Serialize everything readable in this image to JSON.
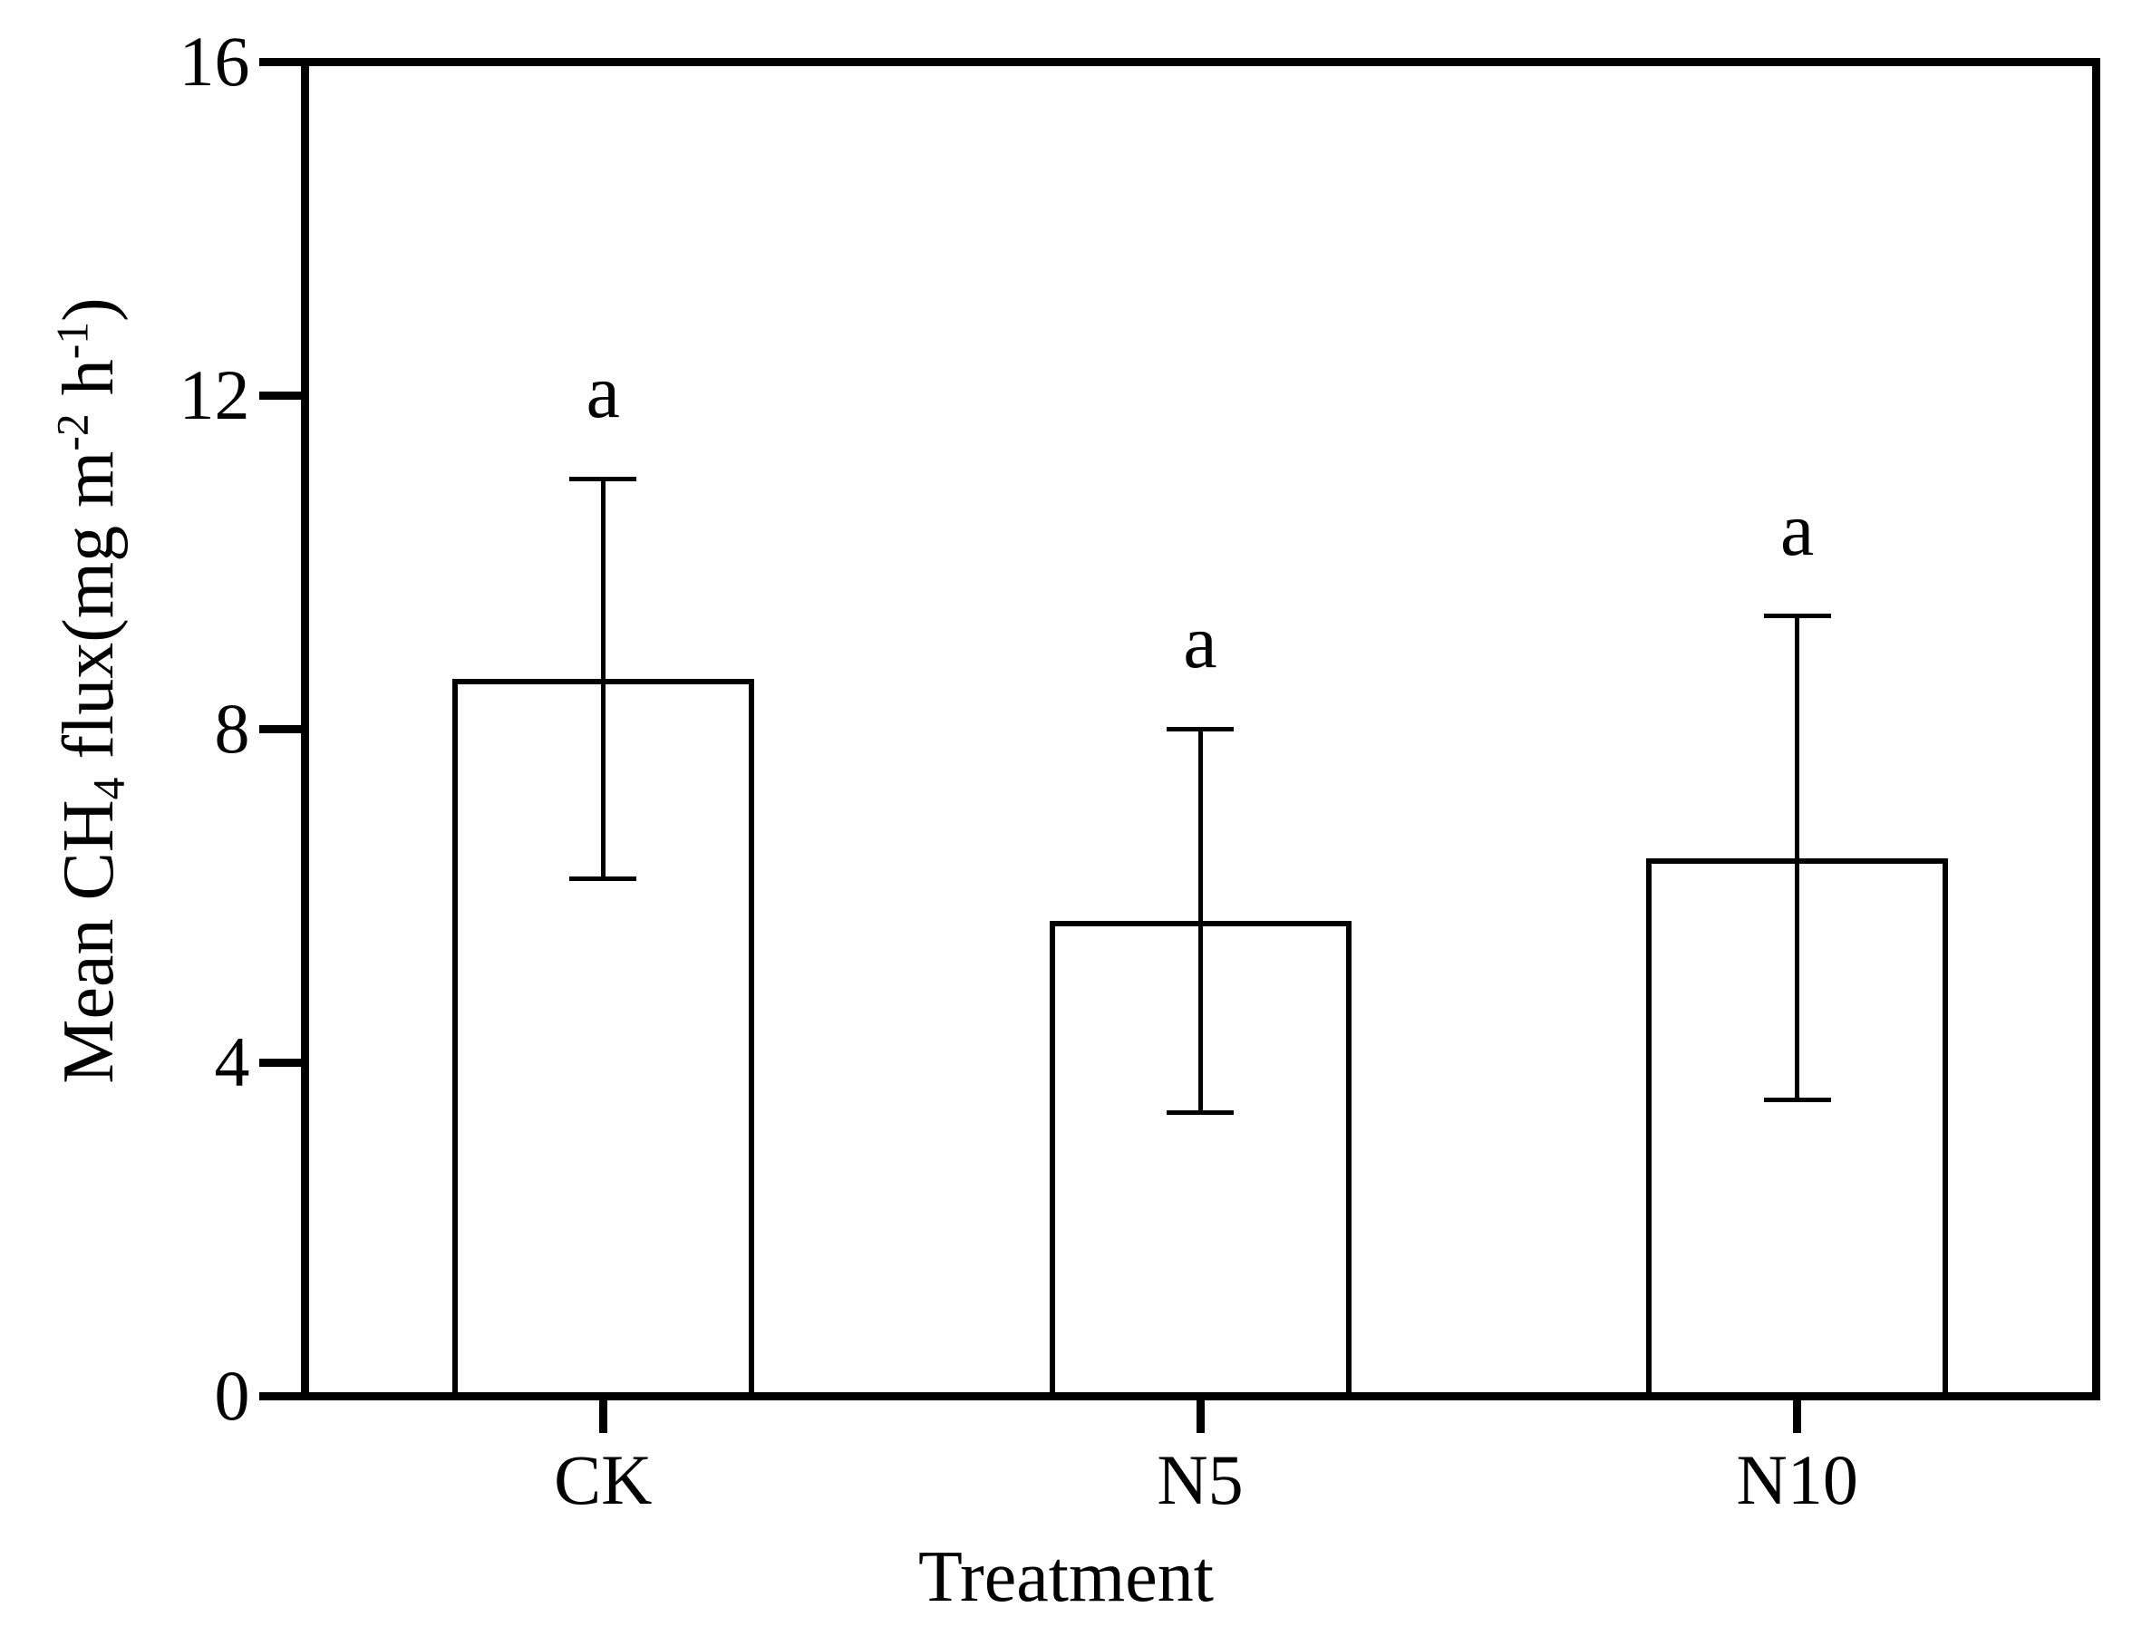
{
  "chart_data": {
    "type": "bar",
    "title": "",
    "xlabel": "Treatment",
    "ylabel": "Mean CH4 flux(mg m-2 h-1)",
    "ylabel_rich": [
      {
        "t": "Mean CH",
        "style": "normal"
      },
      {
        "t": "4",
        "style": "sub"
      },
      {
        "t": " flux(mg m",
        "style": "normal"
      },
      {
        "t": "-2",
        "style": "sup"
      },
      {
        "t": " h",
        "style": "normal"
      },
      {
        "t": "-1",
        "style": "sup"
      },
      {
        "t": ")",
        "style": "normal"
      }
    ],
    "categories": [
      "CK",
      "N5",
      "N10"
    ],
    "values": [
      8.6,
      5.7,
      6.45
    ],
    "errors": [
      2.4,
      2.3,
      2.9
    ],
    "error_caps_upper": [
      11.0,
      8.0,
      9.35
    ],
    "error_caps_lower": [
      6.2,
      3.4,
      3.55
    ],
    "sig_labels": [
      "a",
      "a",
      "a"
    ],
    "ylim": [
      0,
      16
    ],
    "yticks": [
      16,
      12,
      8,
      4,
      0
    ],
    "grid": false,
    "legend": "none",
    "bar_fill": "#ffffff",
    "line_color": "#000000",
    "background": "#ffffff"
  }
}
